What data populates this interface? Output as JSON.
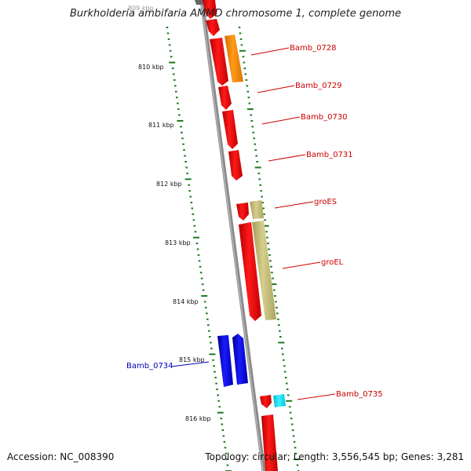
{
  "title": "Burkholderia ambifaria AMMD chromosome 1, complete genome",
  "footer": {
    "accession": "Accession: NC_008390",
    "summary": "Topology: circular; Length: 3,556,545 bp; Genes: 3,281"
  },
  "ruler": {
    "labels": [
      "809 kbp",
      "810 kbp",
      "811 kbp",
      "812 kbp",
      "813 kbp",
      "814 kbp",
      "815 kbp",
      "816 kbp"
    ],
    "color": "#1e7a1e"
  },
  "genes": [
    {
      "label": "Bamb_0728",
      "color": "#cc0000"
    },
    {
      "label": "Bamb_0729",
      "color": "#cc0000"
    },
    {
      "label": "Bamb_0730",
      "color": "#cc0000"
    },
    {
      "label": "Bamb_0731",
      "color": "#cc0000"
    },
    {
      "label": "groES",
      "color": "#cc0000"
    },
    {
      "label": "groEL",
      "color": "#cc0000"
    },
    {
      "label": "Bamb_0734",
      "color": "#0000bb"
    },
    {
      "label": "Bamb_0735",
      "color": "#cc0000"
    }
  ],
  "colors": {
    "cds": "#ff0000",
    "cds_reverse": "#0000ff",
    "gene_orange": "#ff8c00",
    "gene_olive": "#c8bf7a",
    "gene_cyan": "#00e5ff",
    "backbone": "#808080"
  }
}
